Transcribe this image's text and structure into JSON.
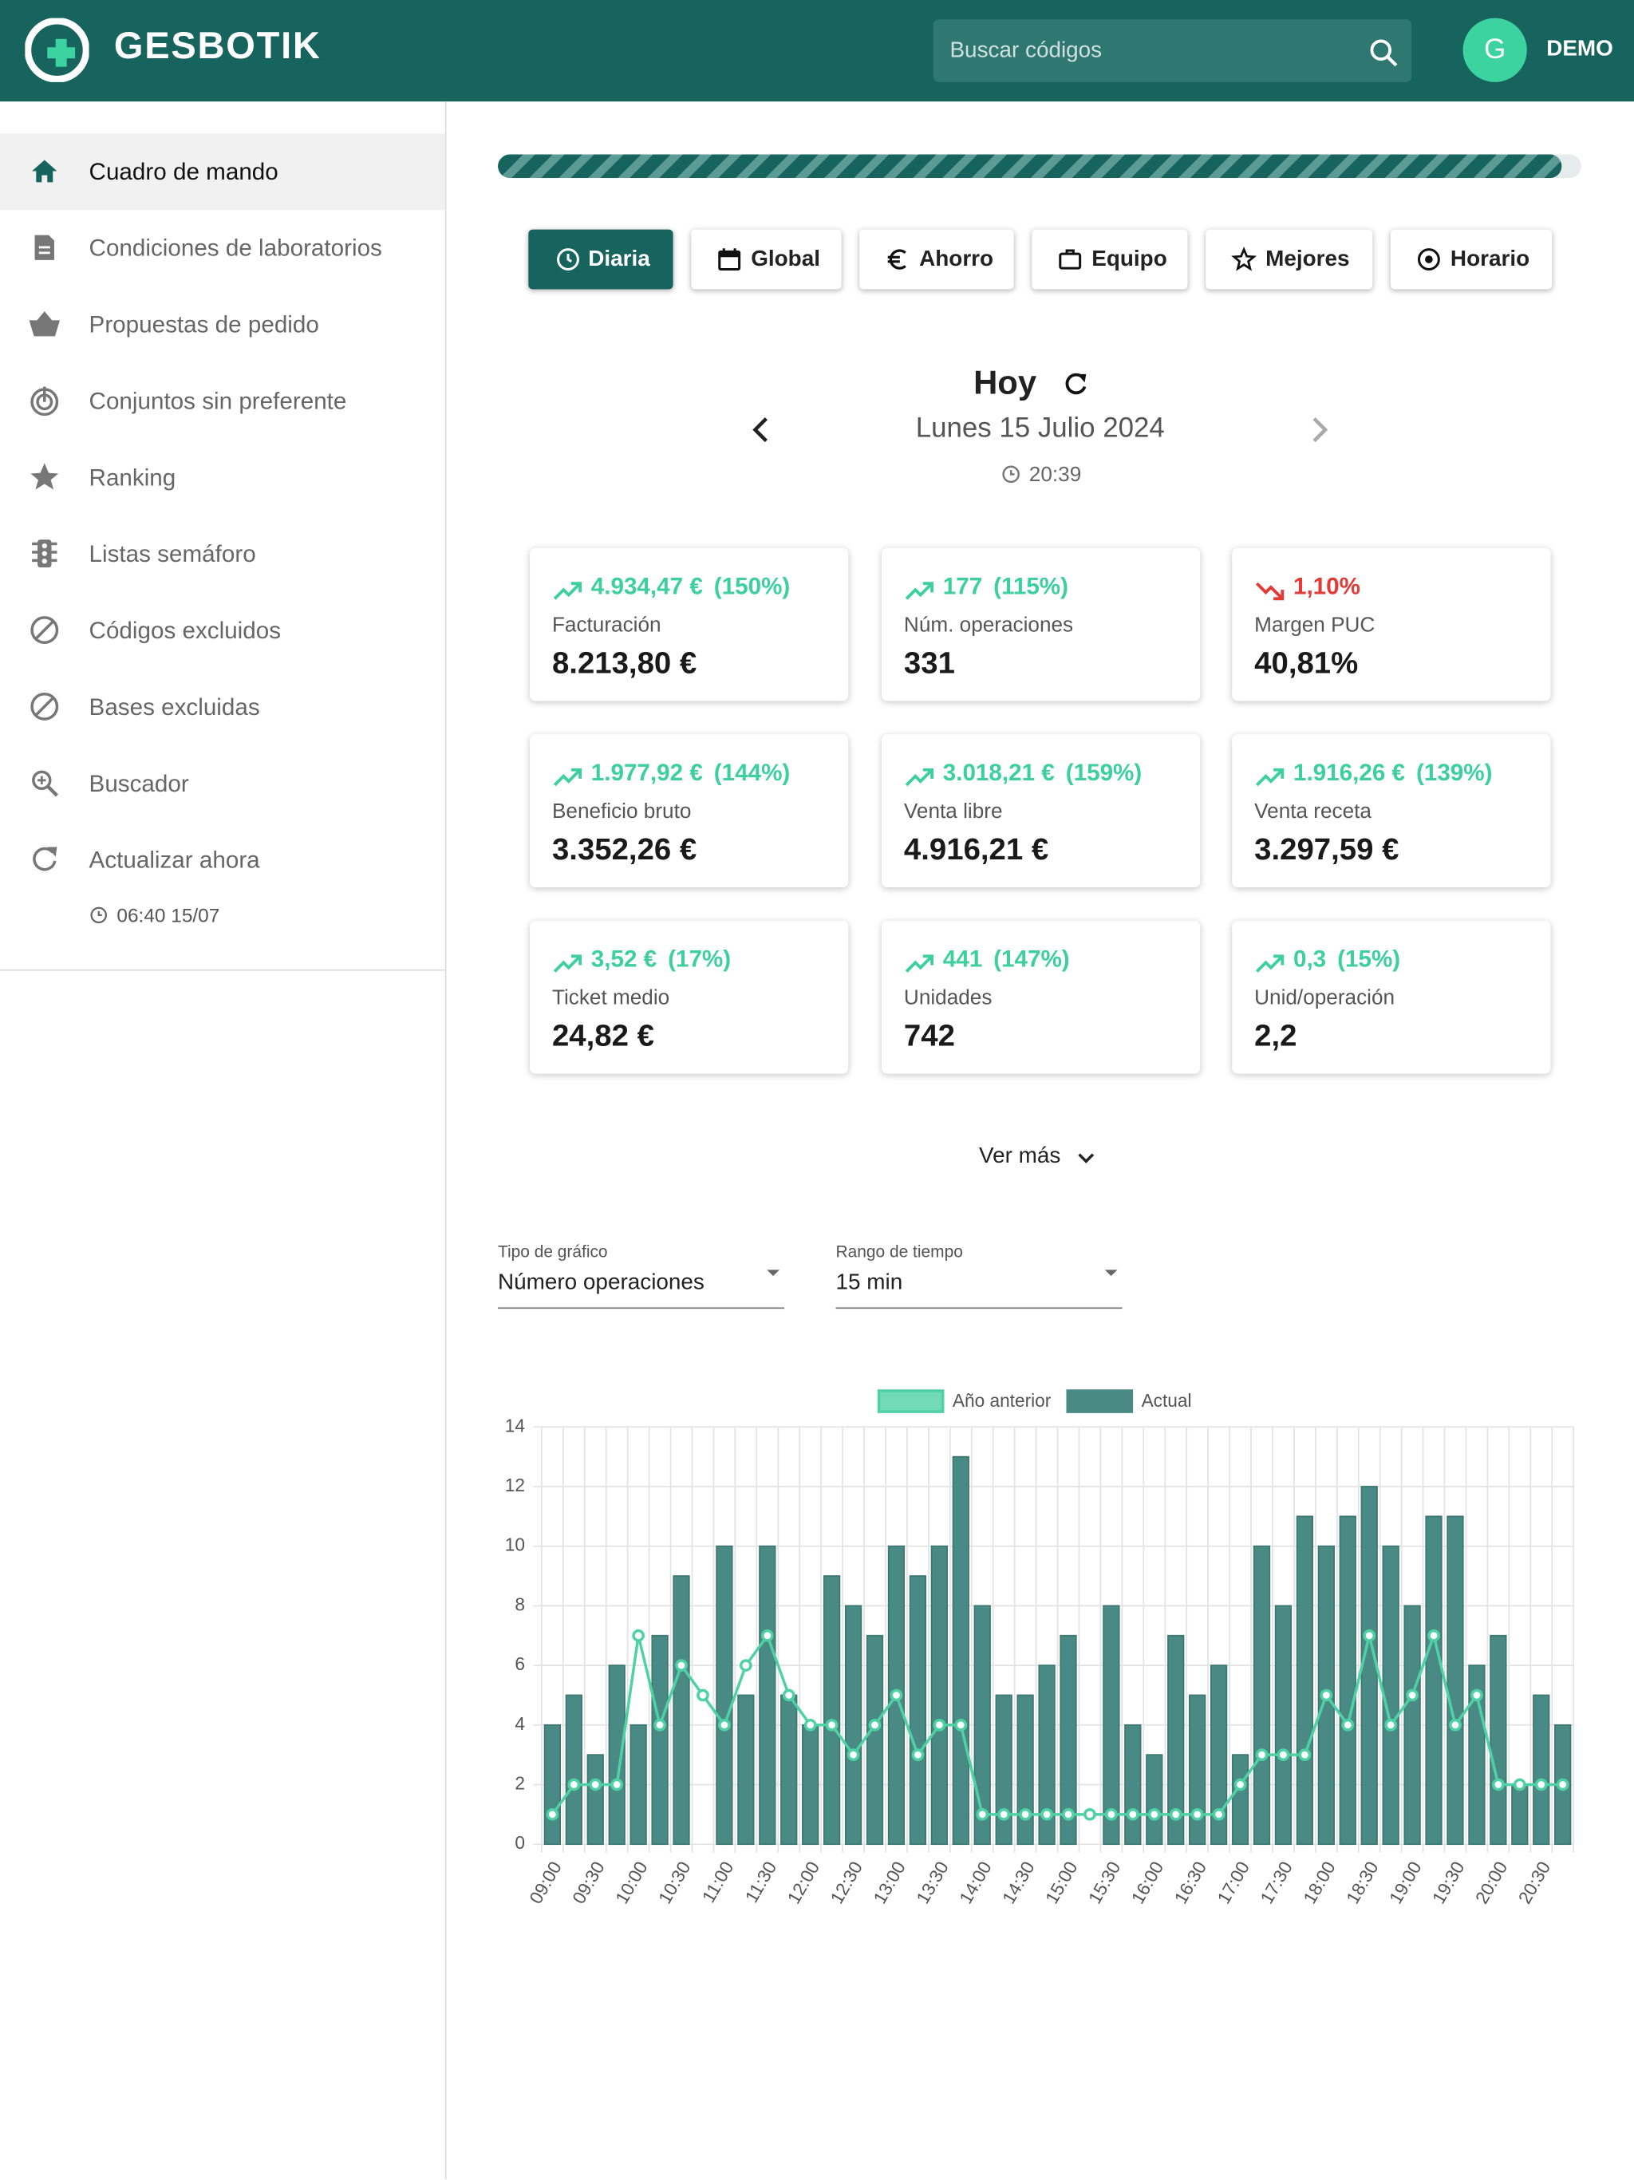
{
  "header": {
    "brand": "GESBOTIK",
    "search_placeholder": "Buscar códigos",
    "avatar": "G",
    "user": "DEMO"
  },
  "sidebar": {
    "items": [
      "Cuadro de mando",
      "Condiciones de laboratorios",
      "Propuestas de pedido",
      "Conjuntos sin preferente",
      "Ranking",
      "Listas semáforo",
      "Códigos excluidos",
      "Bases excluidas",
      "Buscador",
      "Actualizar ahora"
    ],
    "last_update": "06:40 15/07"
  },
  "tabs": [
    "Diaria",
    "Global",
    "Ahorro",
    "Equipo",
    "Mejores",
    "Horario"
  ],
  "date": {
    "title": "Hoy",
    "day": "Lunes 15 Julio 2024",
    "time": "20:39"
  },
  "cards": [
    {
      "delta": "4.934,47 €",
      "delta_pct": "(150%)",
      "label": "Facturación",
      "value": "8.213,80 €",
      "trend": "up"
    },
    {
      "delta": "177",
      "delta_pct": "(115%)",
      "label": "Núm. operaciones",
      "value": "331",
      "trend": "up"
    },
    {
      "delta": "1,10%",
      "label": "Margen PUC",
      "value": "40,81%",
      "trend": "down"
    },
    {
      "delta": "1.977,92 €",
      "delta_pct": "(144%)",
      "label": "Beneficio bruto",
      "value": "3.352,26 €",
      "trend": "up"
    },
    {
      "delta": "3.018,21 €",
      "delta_pct": "(159%)",
      "label": "Venta libre",
      "value": "4.916,21 €",
      "trend": "up"
    },
    {
      "delta": "1.916,26 €",
      "delta_pct": "(139%)",
      "label": "Venta receta",
      "value": "3.297,59 €",
      "trend": "up"
    },
    {
      "delta": "3,52 €",
      "delta_pct": "(17%)",
      "label": "Ticket medio",
      "value": "24,82 €",
      "trend": "up"
    },
    {
      "delta": "441",
      "delta_pct": "(147%)",
      "label": "Unidades",
      "value": "742",
      "trend": "up"
    },
    {
      "delta": "0,3",
      "delta_pct": "(15%)",
      "label": "Unid/operación",
      "value": "2,2",
      "trend": "up"
    }
  ],
  "more": "Ver más",
  "selects": [
    {
      "label": "Tipo de gráfico",
      "value": "Número operaciones"
    },
    {
      "label": "Rango de tiempo",
      "value": "15 min"
    }
  ],
  "chart_data": {
    "type": "bar",
    "categories": [
      "09:00",
      null,
      "09:30",
      null,
      "10:00",
      null,
      "10:30",
      null,
      "11:00",
      null,
      "11:30",
      null,
      "12:00",
      null,
      "12:30",
      null,
      "13:00",
      null,
      "13:30",
      null,
      "14:00",
      null,
      "14:30",
      null,
      "15:00",
      null,
      "15:30",
      null,
      "16:00",
      null,
      "16:30",
      null,
      "17:00",
      null,
      "17:30",
      null,
      "18:00",
      null,
      "18:30",
      null,
      "19:00",
      null,
      "19:30",
      null,
      "20:00",
      null,
      "20:30",
      null
    ],
    "series": [
      {
        "name": "Año anterior",
        "type": "line",
        "color": "#4fd1a5",
        "values": [
          1,
          2,
          2,
          2,
          7,
          4,
          6,
          5,
          4,
          6,
          7,
          5,
          4,
          4,
          3,
          4,
          5,
          3,
          4,
          4,
          1,
          1,
          1,
          1,
          1,
          1,
          1,
          1,
          1,
          1,
          1,
          1,
          2,
          3,
          3,
          3,
          5,
          4,
          7,
          4,
          5,
          7,
          4,
          5,
          2,
          2,
          2,
          2
        ]
      },
      {
        "name": "Actual",
        "type": "bar",
        "color": "#4a8a84",
        "values": [
          4,
          5,
          3,
          6,
          4,
          7,
          9,
          0,
          10,
          5,
          10,
          5,
          4,
          9,
          8,
          7,
          10,
          9,
          10,
          13,
          8,
          5,
          5,
          6,
          7,
          0,
          8,
          4,
          3,
          7,
          5,
          6,
          3,
          10,
          8,
          11,
          10,
          11,
          12,
          10,
          8,
          11,
          11,
          6,
          7,
          2,
          5,
          4
        ]
      }
    ],
    "ylim": [
      0,
      14
    ],
    "yticks": [
      0,
      2,
      4,
      6,
      8,
      10,
      12,
      14
    ],
    "grid": true,
    "legend": "top"
  }
}
